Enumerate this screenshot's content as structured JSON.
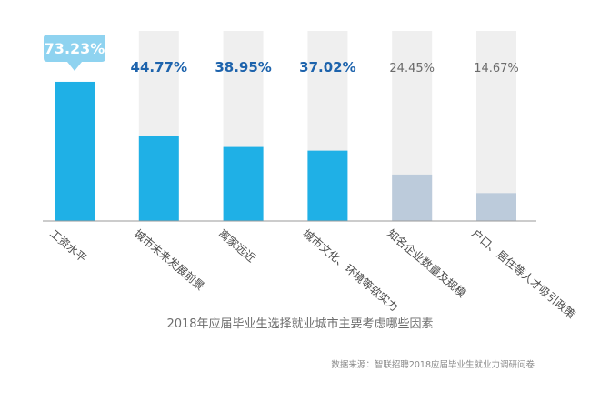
{
  "chart_data": {
    "type": "bar",
    "title": "2018年应届毕业生选择就业城市主要考虑哪些因素",
    "source": "数据来源：智联招聘2018应届毕业生就业力调研问卷",
    "categories": [
      "工资水平",
      "城市未来发展前景",
      "离家远近",
      "城市文化、环境等软实力",
      "知名企业数量及规模",
      "户口、居住等人才吸引政策"
    ],
    "values": [
      73.23,
      44.77,
      38.95,
      37.02,
      24.45,
      14.67
    ],
    "value_labels": [
      "73.23%",
      "44.77%",
      "38.95%",
      "37.02%",
      "24.45%",
      "14.67%"
    ],
    "ylim": [
      0,
      100
    ],
    "xlabel": "",
    "ylabel": "",
    "grid": false,
    "colors": {
      "highlight_bar": "#1fb0e6",
      "muted_bar": "#bccbdb",
      "background_bar": "#efefef",
      "highlight_label": "#1d63ac",
      "muted_label": "#6b6b6b",
      "callout_bg": "#8fd3f0"
    },
    "highlighted_count": 4
  }
}
